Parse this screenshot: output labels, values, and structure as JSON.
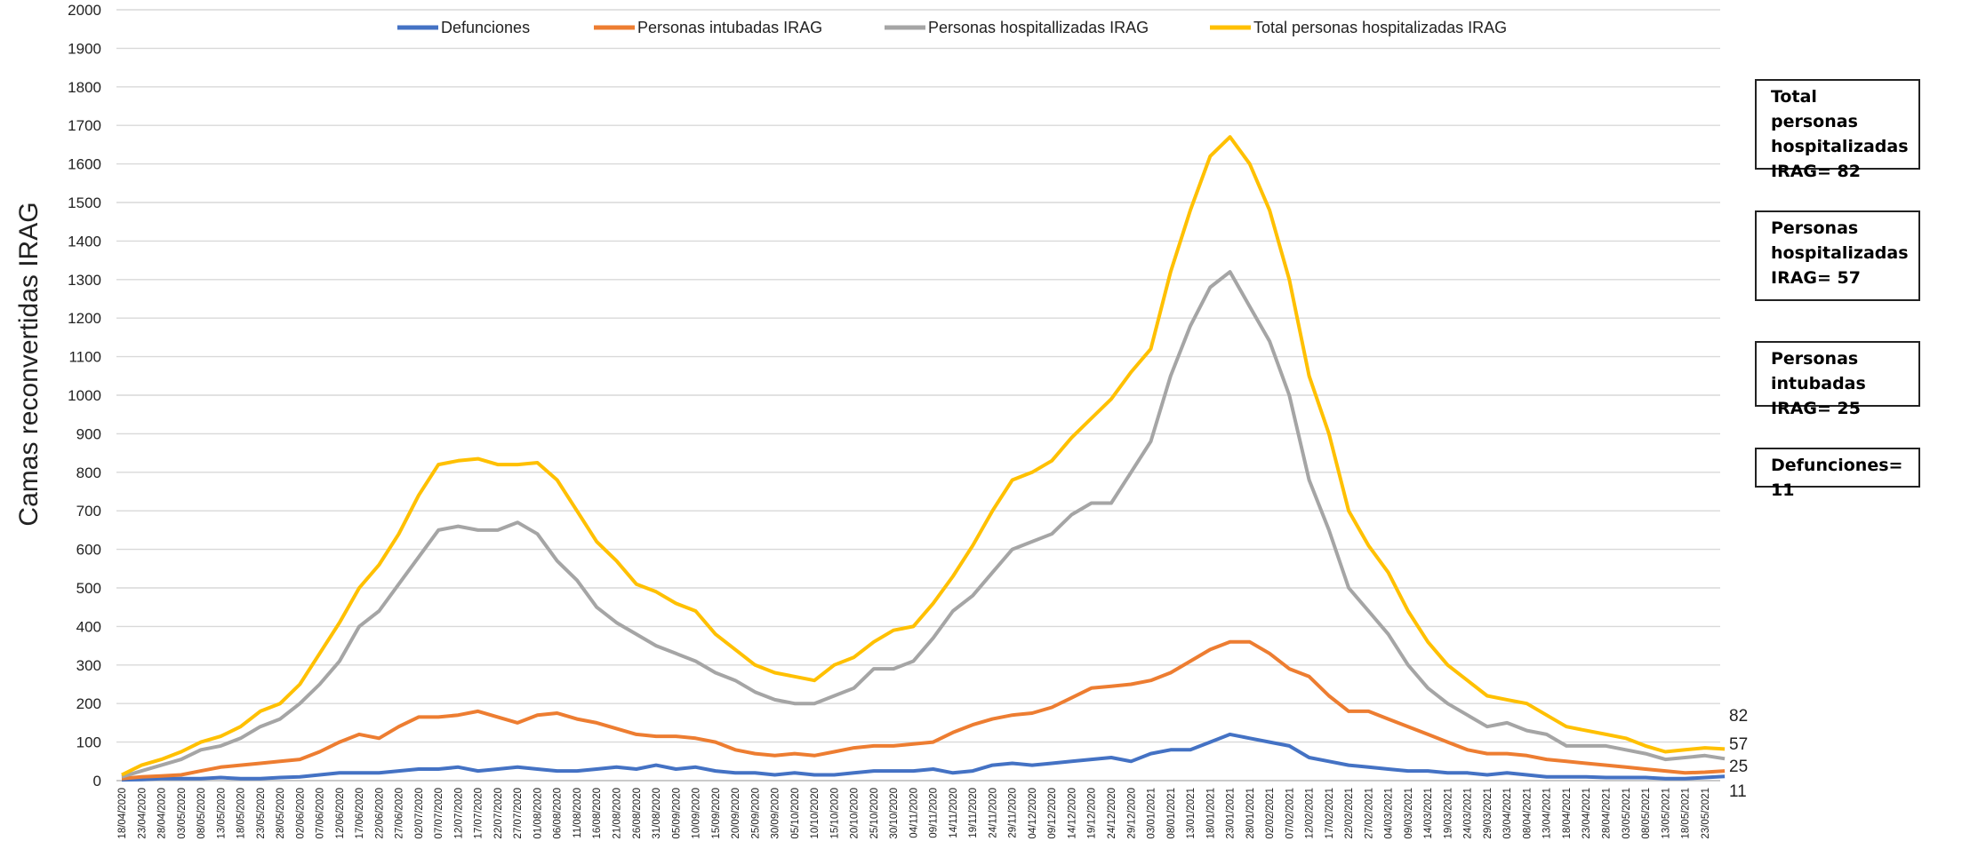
{
  "chart_data": {
    "type": "line",
    "y_label": "Camas reconvertidas IRAG",
    "ylim": [
      0,
      2000
    ],
    "yticks": [
      0,
      100,
      200,
      300,
      400,
      500,
      600,
      700,
      800,
      900,
      1000,
      1100,
      1200,
      1300,
      1400,
      1500,
      1600,
      1700,
      1800,
      1900,
      2000
    ],
    "grid": true,
    "legend": "top",
    "x": [
      "18/04/2020",
      "23/04/2020",
      "28/04/2020",
      "03/05/2020",
      "08/05/2020",
      "13/05/2020",
      "18/05/2020",
      "23/05/2020",
      "28/05/2020",
      "02/06/2020",
      "07/06/2020",
      "12/06/2020",
      "17/06/2020",
      "22/06/2020",
      "27/06/2020",
      "02/07/2020",
      "07/07/2020",
      "12/07/2020",
      "17/07/2020",
      "22/07/2020",
      "27/07/2020",
      "01/08/2020",
      "06/08/2020",
      "11/08/2020",
      "16/08/2020",
      "21/08/2020",
      "26/08/2020",
      "31/08/2020",
      "05/09/2020",
      "10/09/2020",
      "15/09/2020",
      "20/09/2020",
      "25/09/2020",
      "30/09/2020",
      "05/10/2020",
      "10/10/2020",
      "15/10/2020",
      "20/10/2020",
      "25/10/2020",
      "30/10/2020",
      "04/11/2020",
      "09/11/2020",
      "14/11/2020",
      "19/11/2020",
      "24/11/2020",
      "29/11/2020",
      "04/12/2020",
      "09/12/2020",
      "14/12/2020",
      "19/12/2020",
      "24/12/2020",
      "29/12/2020",
      "03/01/2021",
      "08/01/2021",
      "13/01/2021",
      "18/01/2021",
      "23/01/2021",
      "28/01/2021",
      "02/02/2021",
      "07/02/2021",
      "12/02/2021",
      "17/02/2021",
      "22/02/2021",
      "27/02/2021",
      "04/03/2021",
      "09/03/2021",
      "14/03/2021",
      "19/03/2021",
      "24/03/2021",
      "29/03/2021",
      "03/04/2021",
      "08/04/2021",
      "13/04/2021",
      "18/04/2021",
      "23/04/2021",
      "28/04/2021",
      "03/05/2021",
      "08/05/2021",
      "13/05/2021",
      "18/05/2021",
      "23/05/2021",
      null
    ],
    "series": [
      {
        "name": "Defunciones",
        "color": "#4472c4",
        "values": [
          2,
          3,
          5,
          5,
          5,
          8,
          5,
          5,
          8,
          10,
          15,
          20,
          20,
          20,
          25,
          30,
          30,
          35,
          25,
          30,
          35,
          30,
          25,
          25,
          30,
          35,
          30,
          40,
          30,
          35,
          25,
          20,
          20,
          15,
          20,
          15,
          15,
          20,
          25,
          25,
          25,
          30,
          20,
          25,
          40,
          45,
          40,
          45,
          50,
          55,
          60,
          50,
          70,
          80,
          80,
          100,
          120,
          110,
          100,
          90,
          60,
          50,
          40,
          35,
          30,
          25,
          25,
          20,
          20,
          15,
          20,
          15,
          10,
          10,
          10,
          8,
          8,
          8,
          5,
          5,
          8,
          11
        ]
      },
      {
        "name": "Personas intubadas IRAG",
        "color": "#ed7d31",
        "values": [
          5,
          10,
          12,
          15,
          25,
          35,
          40,
          45,
          50,
          55,
          75,
          100,
          120,
          110,
          140,
          165,
          165,
          170,
          180,
          165,
          150,
          170,
          175,
          160,
          150,
          135,
          120,
          115,
          115,
          110,
          100,
          80,
          70,
          65,
          70,
          65,
          75,
          85,
          90,
          90,
          95,
          100,
          125,
          145,
          160,
          170,
          175,
          190,
          215,
          240,
          245,
          250,
          260,
          280,
          310,
          340,
          360,
          360,
          330,
          290,
          270,
          220,
          180,
          180,
          160,
          140,
          120,
          100,
          80,
          70,
          70,
          65,
          55,
          50,
          45,
          40,
          35,
          30,
          25,
          20,
          22,
          25
        ]
      },
      {
        "name": "Personas hospitallizadas IRAG",
        "color": "#a5a5a5",
        "values": [
          10,
          25,
          40,
          55,
          80,
          90,
          110,
          140,
          160,
          200,
          250,
          310,
          400,
          440,
          510,
          580,
          650,
          660,
          650,
          650,
          670,
          640,
          570,
          520,
          450,
          410,
          380,
          350,
          330,
          310,
          280,
          260,
          230,
          210,
          200,
          200,
          220,
          240,
          290,
          290,
          310,
          370,
          440,
          480,
          540,
          600,
          620,
          640,
          690,
          720,
          720,
          800,
          880,
          1050,
          1180,
          1280,
          1320,
          1230,
          1140,
          1000,
          780,
          650,
          500,
          440,
          380,
          300,
          240,
          200,
          170,
          140,
          150,
          130,
          120,
          90,
          90,
          90,
          80,
          70,
          55,
          60,
          65,
          57
        ]
      },
      {
        "name": "Total personas hospitalizadas IRAG",
        "color": "#ffc000",
        "values": [
          15,
          40,
          55,
          75,
          100,
          115,
          140,
          180,
          200,
          250,
          330,
          410,
          500,
          560,
          640,
          740,
          820,
          830,
          835,
          820,
          820,
          825,
          780,
          700,
          620,
          570,
          510,
          490,
          460,
          440,
          380,
          340,
          300,
          280,
          270,
          260,
          300,
          320,
          360,
          390,
          400,
          460,
          530,
          610,
          700,
          780,
          800,
          830,
          890,
          940,
          990,
          1060,
          1120,
          1320,
          1480,
          1620,
          1670,
          1600,
          1480,
          1300,
          1050,
          900,
          700,
          610,
          540,
          440,
          360,
          300,
          260,
          220,
          210,
          200,
          170,
          140,
          130,
          120,
          110,
          90,
          75,
          80,
          85,
          82
        ]
      }
    ],
    "annotations": [
      "Total personas hospitalizadas IRAG= 82",
      "Personas hospitalizadas IRAG= 57",
      "Personas intubadas IRAG= 25",
      "Defunciones= 11"
    ]
  }
}
